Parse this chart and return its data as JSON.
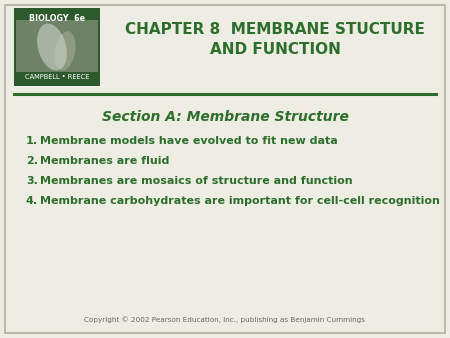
{
  "background_color": "#eeede3",
  "border_color": "#b0b0a0",
  "title_line1": "CHAPTER 8  MEMBRANE STUCTURE",
  "title_line2": "AND FUNCTION",
  "title_color": "#2d6e2d",
  "section_title": "Section A: Membrane Structure",
  "section_color": "#2d6e2d",
  "separator_color": "#2d6e2d",
  "items": [
    "Membrane models have evolved to fit new data",
    "Membranes are fluid",
    "Membranes are mosaics of structure and function",
    "Membrane carbohydrates are important for cell-cell recognition"
  ],
  "item_color": "#2d6e2d",
  "copyright": "Copyright © 2002 Pearson Education, Inc., publishing as Benjamin Cummings",
  "copyright_color": "#666666",
  "logo_bg_color": "#2d5a2d",
  "logo_text_top": "BIOLOGY  6e",
  "logo_text_bottom": "CAMPBELL • REECE"
}
